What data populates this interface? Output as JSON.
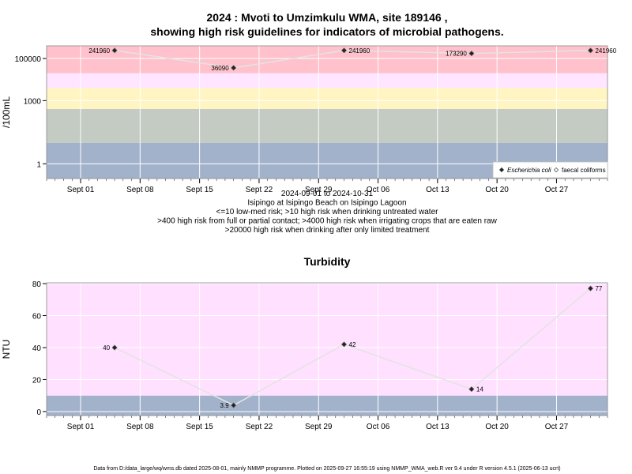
{
  "chart_data": [
    {
      "type": "line",
      "title_lines": [
        "2024 : Mvoti to Umzimkulu WMA, site 189146 ,",
        "showing high risk guidelines for indicators of microbial pathogens."
      ],
      "subtitle_lines": [
        "2024-09-01 to 2024-10-31",
        "Isipingo at Isipingo Beach on Isipingo Lagoon",
        "<=10 low-med risk; >10 high risk when drinking untreated water",
        ">400 high risk from full or partial contact; >4000 high risk when irrigating crops that are eaten raw",
        ">20000 high risk when drinking after only limited treatment"
      ],
      "ylabel": "/100mL",
      "yscale": "log",
      "ylim": [
        0.2,
        400000
      ],
      "xlim": [
        "2024-08-28",
        "2024-11-02"
      ],
      "x_ticks": [
        {
          "date": "2024-09-01",
          "label": "Sept 01"
        },
        {
          "date": "2024-09-08",
          "label": "Sept 08"
        },
        {
          "date": "2024-09-15",
          "label": "Sept 15"
        },
        {
          "date": "2024-09-22",
          "label": "Sept 22"
        },
        {
          "date": "2024-09-29",
          "label": "Sept 29"
        },
        {
          "date": "2024-10-06",
          "label": "Oct 06"
        },
        {
          "date": "2024-10-13",
          "label": "Oct 13"
        },
        {
          "date": "2024-10-20",
          "label": "Oct 20"
        },
        {
          "date": "2024-10-27",
          "label": "Oct 27"
        }
      ],
      "y_ticks": [
        {
          "value": 1,
          "label": "1"
        },
        {
          "value": 1000,
          "label": "1000"
        },
        {
          "value": 100000,
          "label": "100000"
        }
      ],
      "bands": [
        {
          "from": 0.2,
          "to": 10,
          "color": "#a2b2cb"
        },
        {
          "from": 10,
          "to": 400,
          "color": "#c3cbc3"
        },
        {
          "from": 400,
          "to": 4000,
          "color": "#fff5c3"
        },
        {
          "from": 4000,
          "to": 20000,
          "color": "#ffe5ff"
        },
        {
          "from": 20000,
          "to": 400000,
          "color": "#ffc1cb"
        }
      ],
      "grid": true,
      "series": [
        {
          "name": "Escherichia coli",
          "marker": "filled-diamond",
          "points": [
            {
              "x": "2024-09-05",
              "y": 241960,
              "label": "241960",
              "label_side": "left"
            },
            {
              "x": "2024-09-19",
              "y": 36090,
              "label": "36090",
              "label_side": "left"
            },
            {
              "x": "2024-10-02",
              "y": 241960,
              "label": "241960",
              "label_side": "right"
            },
            {
              "x": "2024-10-17",
              "y": 173290,
              "label": "173290",
              "label_side": "left"
            },
            {
              "x": "2024-10-31",
              "y": 241960,
              "label": "241960",
              "label_side": "right"
            }
          ]
        },
        {
          "name": "faecal coliforms",
          "marker": "open-diamond",
          "points": []
        }
      ],
      "legend": {
        "position": "bottom-right",
        "entries": [
          "Escherichia coli",
          "faecal coliforms"
        ]
      }
    },
    {
      "type": "line",
      "title": "Turbidity",
      "ylabel": "NTU",
      "ylim": [
        -2.5,
        80.5
      ],
      "xlim": [
        "2024-08-28",
        "2024-11-02"
      ],
      "x_ticks": [
        {
          "date": "2024-09-01",
          "label": "Sept 01"
        },
        {
          "date": "2024-09-08",
          "label": "Sept 08"
        },
        {
          "date": "2024-09-15",
          "label": "Sept 15"
        },
        {
          "date": "2024-09-22",
          "label": "Sept 22"
        },
        {
          "date": "2024-09-29",
          "label": "Sept 29"
        },
        {
          "date": "2024-10-06",
          "label": "Oct 06"
        },
        {
          "date": "2024-10-13",
          "label": "Oct 13"
        },
        {
          "date": "2024-10-20",
          "label": "Oct 20"
        },
        {
          "date": "2024-10-27",
          "label": "Oct 27"
        }
      ],
      "y_ticks": [
        {
          "value": 0,
          "label": "0"
        },
        {
          "value": 20,
          "label": "20"
        },
        {
          "value": 40,
          "label": "40"
        },
        {
          "value": 60,
          "label": "60"
        },
        {
          "value": 80,
          "label": "80"
        }
      ],
      "bands": [
        {
          "from": -2.5,
          "to": 10,
          "color": "#a2b2cb"
        },
        {
          "from": 10,
          "to": 80.5,
          "color": "#ffe1ff"
        }
      ],
      "grid": true,
      "series": [
        {
          "name": "Turbidity",
          "marker": "filled-diamond",
          "points": [
            {
              "x": "2024-09-05",
              "y": 40,
              "label": "40",
              "label_side": "left"
            },
            {
              "x": "2024-09-19",
              "y": 3.9,
              "label": "3.9",
              "label_side": "left"
            },
            {
              "x": "2024-10-02",
              "y": 42,
              "label": "42",
              "label_side": "right"
            },
            {
              "x": "2024-10-17",
              "y": 14,
              "label": "14",
              "label_side": "right"
            },
            {
              "x": "2024-10-31",
              "y": 77,
              "label": "77",
              "label_side": "right"
            }
          ]
        }
      ]
    }
  ],
  "footer": "Data from D:/data_large/wq/wms.db dated 2025-08-01, mainly NMMP programme. Plotted on 2025-09-27 16:55:19 using NMMP_WMA_web.R ver 9.4 under R version 4.5.1 (2025-06-13 ucrt)"
}
